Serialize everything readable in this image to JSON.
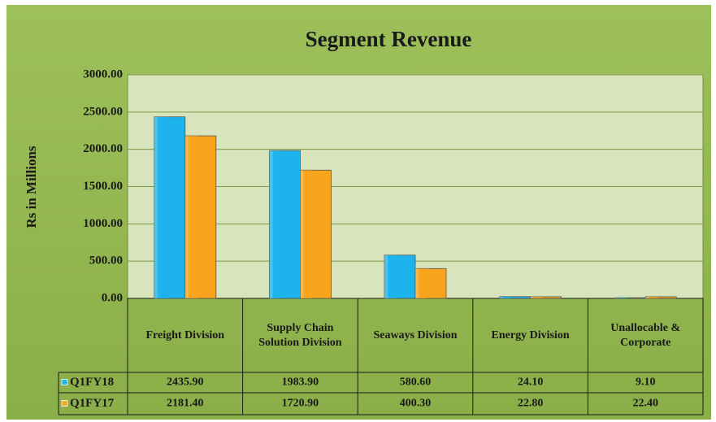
{
  "chart_data": {
    "type": "bar",
    "title": "Segment Revenue",
    "y_label": "Rs in Millions",
    "categories": [
      "Freight Division",
      "Supply Chain Solution Division",
      "Seaways Division",
      "Energy Division",
      "Unallocable & Corporate"
    ],
    "series": [
      {
        "name": "Q1FY18",
        "color": "#1db4ee",
        "values": [
          2435.9,
          1983.9,
          580.6,
          24.1,
          9.1
        ],
        "value_labels": [
          "2435.90",
          "1983.90",
          "580.60",
          "24.10",
          "9.10"
        ]
      },
      {
        "name": "Q1FY17",
        "color": "#f8a41c",
        "values": [
          2181.4,
          1720.9,
          400.3,
          22.8,
          22.4
        ],
        "value_labels": [
          "2181.40",
          "1720.90",
          "400.30",
          "22.80",
          "22.40"
        ]
      }
    ],
    "ylim": [
      0,
      3000
    ],
    "yticks": [
      {
        "value": 0,
        "label": "0.00"
      },
      {
        "value": 500,
        "label": "500.00"
      },
      {
        "value": 1000,
        "label": "1000.00"
      },
      {
        "value": 1500,
        "label": "1500.00"
      },
      {
        "value": 2000,
        "label": "2000.00"
      },
      {
        "value": 2500,
        "label": "2500.00"
      },
      {
        "value": 3000,
        "label": "3000.00"
      }
    ],
    "grid": true
  }
}
